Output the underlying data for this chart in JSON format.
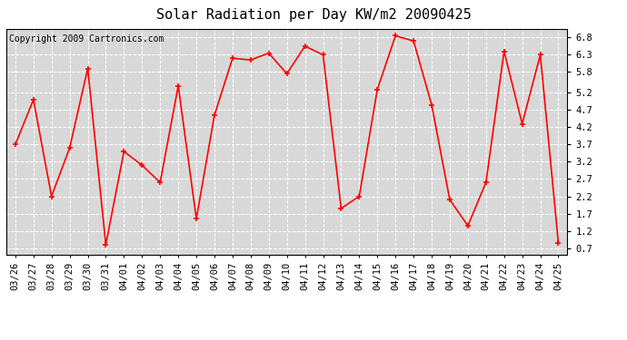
{
  "title": "Solar Radiation per Day KW/m2 20090425",
  "copyright": "Copyright 2009 Cartronics.com",
  "dates": [
    "03/26",
    "03/27",
    "03/28",
    "03/29",
    "03/30",
    "03/31",
    "04/01",
    "04/02",
    "04/03",
    "04/04",
    "04/05",
    "04/06",
    "04/07",
    "04/08",
    "04/09",
    "04/10",
    "04/11",
    "04/12",
    "04/13",
    "04/14",
    "04/15",
    "04/16",
    "04/17",
    "04/18",
    "04/19",
    "04/20",
    "04/21",
    "04/22",
    "04/23",
    "04/24",
    "04/25"
  ],
  "values": [
    3.7,
    5.0,
    2.2,
    3.6,
    5.9,
    0.8,
    3.5,
    3.1,
    2.6,
    5.4,
    1.55,
    4.55,
    6.2,
    6.15,
    6.35,
    5.75,
    6.55,
    6.3,
    1.85,
    2.2,
    5.3,
    6.85,
    6.7,
    4.85,
    2.1,
    1.35,
    2.6,
    6.4,
    4.3,
    6.3,
    0.85
  ],
  "line_color": "#ff0000",
  "marker": "+",
  "marker_size": 5,
  "line_width": 1.2,
  "bg_color": "#ffffff",
  "plot_bg_color": "#d8d8d8",
  "grid_color": "#ffffff",
  "ylim": [
    0.5,
    7.05
  ],
  "yticks": [
    0.7,
    1.2,
    1.7,
    2.2,
    2.7,
    3.2,
    3.7,
    4.2,
    4.7,
    5.2,
    5.8,
    6.3,
    6.8
  ],
  "title_fontsize": 11,
  "tick_fontsize": 7.5,
  "copyright_fontsize": 7
}
